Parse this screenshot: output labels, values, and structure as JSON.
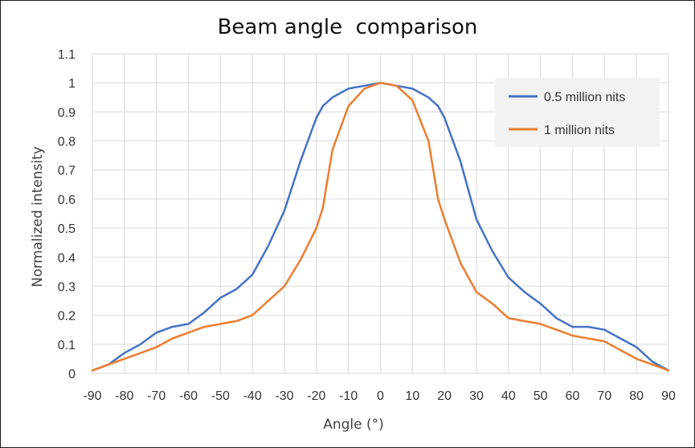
{
  "chart_data": {
    "type": "line",
    "title": "Beam angle  comparison",
    "xlabel": "Angle  (°)",
    "ylabel": "Normalized intensity",
    "xlim": [
      -90,
      90
    ],
    "ylim": [
      0,
      1.1
    ],
    "xticks": [
      "-90",
      "-80",
      "-70",
      "-60",
      "-50",
      "-40",
      "-30",
      "-20",
      "-10",
      "0",
      "10",
      "20",
      "30",
      "40",
      "50",
      "60",
      "70",
      "80",
      "90"
    ],
    "yticks": [
      "0",
      "0.1",
      "0.2",
      "0.3",
      "0.4",
      "0.5",
      "0.6",
      "0.7",
      "0.8",
      "0.9",
      "1",
      "1.1"
    ],
    "grid": true,
    "legend_position": "top-right",
    "x": [
      -90,
      -85,
      -80,
      -75,
      -70,
      -65,
      -60,
      -55,
      -50,
      -45,
      -40,
      -35,
      -30,
      -25,
      -20,
      -18,
      -15,
      -10,
      -5,
      0,
      5,
      10,
      15,
      18,
      20,
      25,
      30,
      35,
      40,
      45,
      50,
      55,
      60,
      65,
      70,
      75,
      80,
      85,
      90
    ],
    "series": [
      {
        "name": "0.5 million nits",
        "color": "#4472C4",
        "values": [
          0.01,
          0.03,
          0.07,
          0.1,
          0.14,
          0.16,
          0.17,
          0.21,
          0.26,
          0.29,
          0.34,
          0.44,
          0.56,
          0.73,
          0.88,
          0.92,
          0.95,
          0.98,
          0.99,
          1.0,
          0.99,
          0.98,
          0.95,
          0.92,
          0.88,
          0.73,
          0.53,
          0.42,
          0.33,
          0.28,
          0.24,
          0.19,
          0.16,
          0.16,
          0.15,
          0.12,
          0.09,
          0.04,
          0.01
        ]
      },
      {
        "name": "1 million nits",
        "color": "#ED7D31",
        "values": [
          0.01,
          0.03,
          0.05,
          0.07,
          0.09,
          0.12,
          0.14,
          0.16,
          0.17,
          0.18,
          0.2,
          0.25,
          0.3,
          0.39,
          0.5,
          0.57,
          0.77,
          0.92,
          0.98,
          1.0,
          0.99,
          0.94,
          0.8,
          0.6,
          0.53,
          0.38,
          0.28,
          0.24,
          0.19,
          0.18,
          0.17,
          0.15,
          0.13,
          0.12,
          0.11,
          0.08,
          0.05,
          0.03,
          0.01
        ]
      }
    ]
  }
}
